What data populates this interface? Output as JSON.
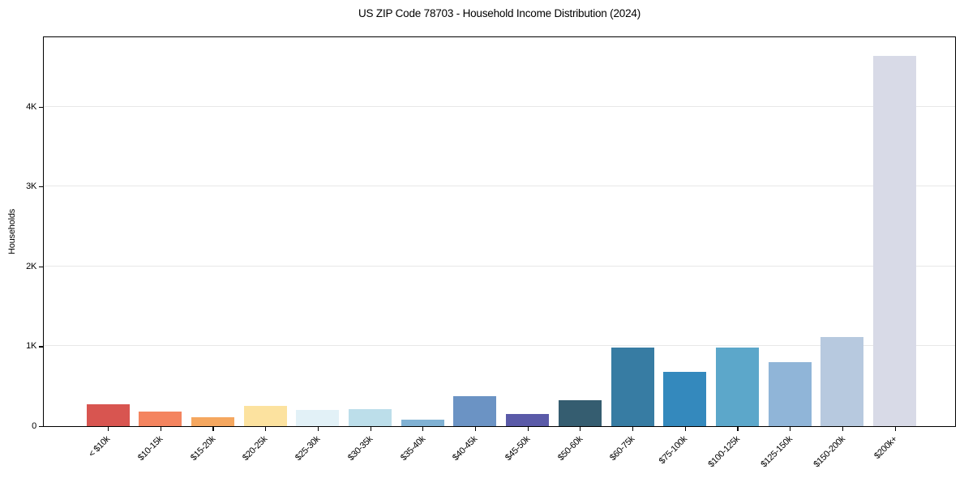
{
  "chart_data": {
    "type": "bar",
    "title": "US ZIP Code 78703 - Household Income Distribution (2024)",
    "xlabel": "",
    "ylabel": "Households",
    "categories": [
      "< $10k",
      "$10-15k",
      "$15-20k",
      "$20-25k",
      "$25-30k",
      "$30-35k",
      "$35-40k",
      "$40-45k",
      "$45-50k",
      "$50-60k",
      "$60-75k",
      "$75-100k",
      "$100-125k",
      "$125-150k",
      "$150-200k",
      "$200k+"
    ],
    "values": [
      275,
      180,
      110,
      250,
      200,
      215,
      80,
      380,
      150,
      330,
      980,
      680,
      980,
      800,
      1120,
      4640
    ],
    "bar_colors": [
      "#d85550",
      "#f4845f",
      "#f5a75f",
      "#fce29f",
      "#e2f1f7",
      "#bcdeea",
      "#80b1d3",
      "#6b93c4",
      "#5a5aa8",
      "#355d70",
      "#377ca3",
      "#3489bd",
      "#5ca7ca",
      "#90b5d8",
      "#b7c9df",
      "#d8dae7"
    ],
    "ylim": [
      0,
      4870
    ],
    "yticks": [
      {
        "value": 0,
        "label": "0"
      },
      {
        "value": 1000,
        "label": "1K"
      },
      {
        "value": 2000,
        "label": "2K"
      },
      {
        "value": 3000,
        "label": "3K"
      },
      {
        "value": 4000,
        "label": "4K"
      }
    ],
    "grid": "horizontal",
    "grid_color": "#e8e8e8",
    "axis_color": "#000000",
    "background_color": "#ffffff",
    "legend": "none"
  }
}
